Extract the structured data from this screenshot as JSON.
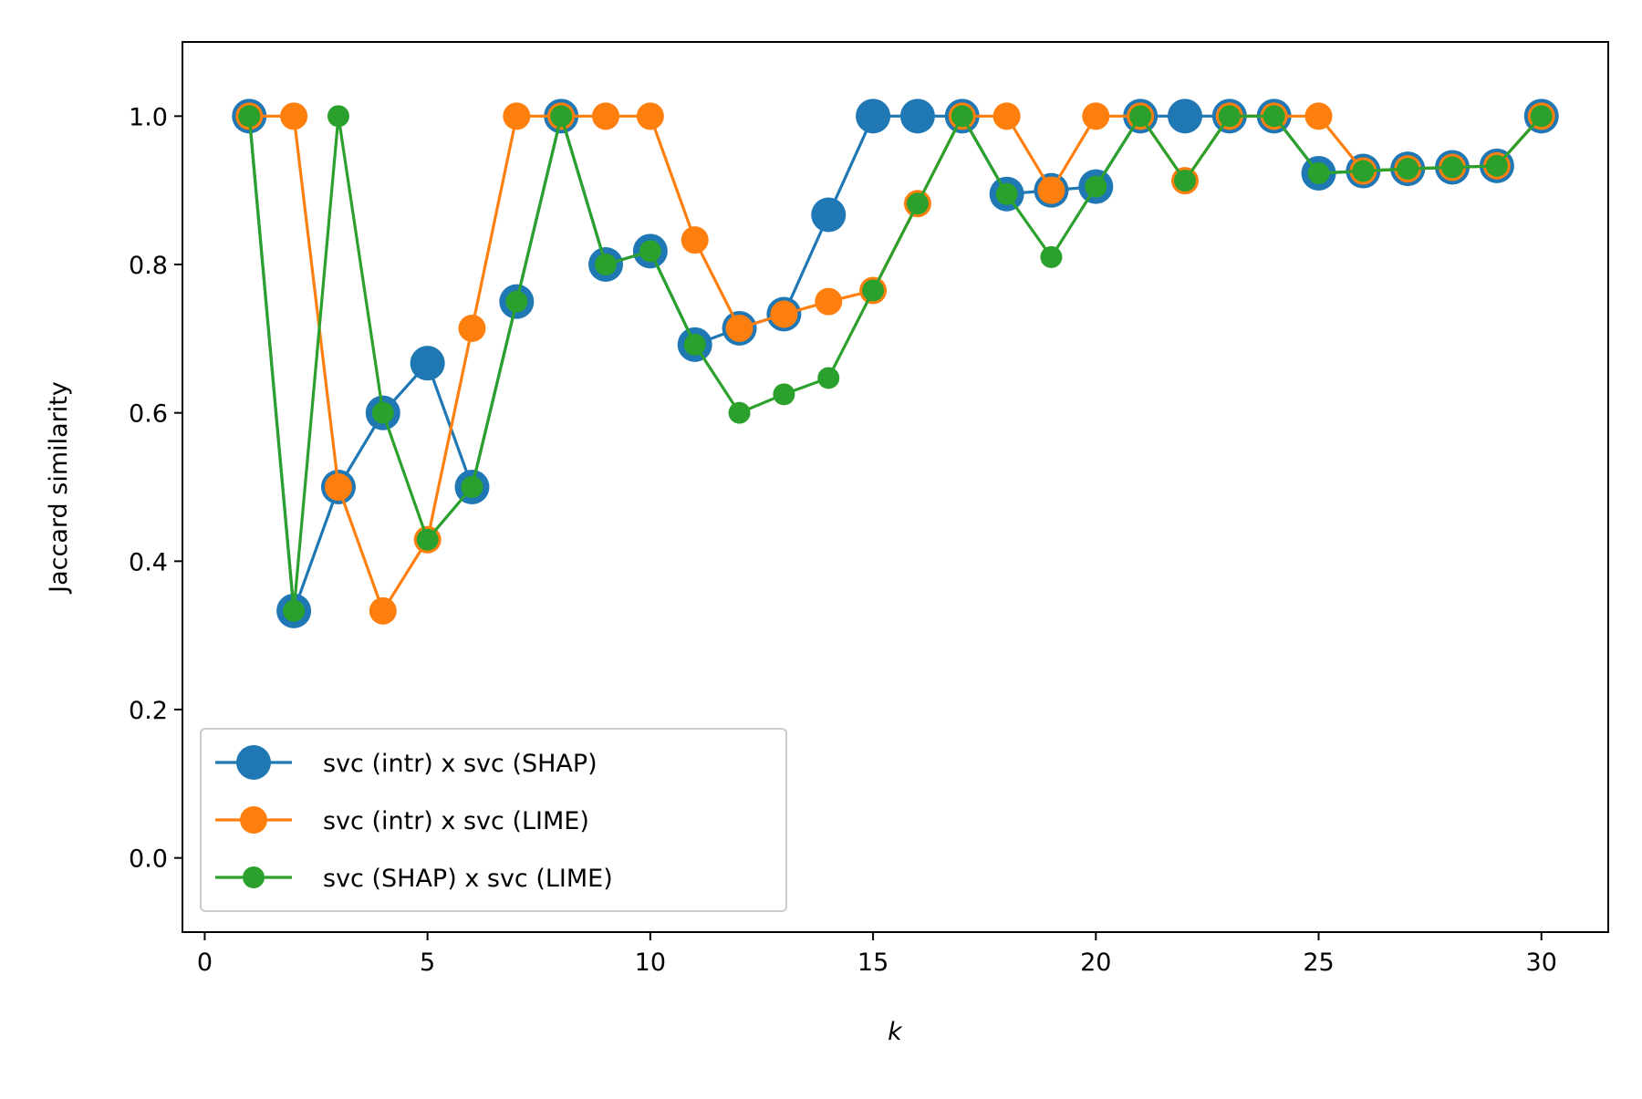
{
  "chart_data": {
    "type": "line",
    "title": "",
    "xlabel": "k",
    "ylabel": "Jaccard similarity",
    "xlim": [
      -0.5,
      31.5
    ],
    "ylim": [
      -0.1,
      1.1
    ],
    "xticks": [
      0,
      5,
      10,
      15,
      20,
      25,
      30
    ],
    "xtick_labels": [
      "0",
      "5",
      "10",
      "15",
      "20",
      "25",
      "30"
    ],
    "yticks": [
      0.0,
      0.2,
      0.4,
      0.6,
      0.8,
      1.0
    ],
    "ytick_labels": [
      "0.0",
      "0.2",
      "0.4",
      "0.6",
      "0.8",
      "1.0"
    ],
    "grid": false,
    "legend_position": "lower-left",
    "x": [
      1,
      2,
      3,
      4,
      5,
      6,
      7,
      8,
      9,
      10,
      11,
      12,
      13,
      14,
      15,
      16,
      17,
      18,
      19,
      20,
      21,
      22,
      23,
      24,
      25,
      26,
      27,
      28,
      29,
      30
    ],
    "series": [
      {
        "name": "svc (intr) x svc (SHAP)",
        "color": "#1f77b4",
        "marker_size": "large",
        "values": [
          1.0,
          0.333,
          0.5,
          0.6,
          0.667,
          0.5,
          0.75,
          1.0,
          0.8,
          0.818,
          0.692,
          0.714,
          0.733,
          0.867,
          1.0,
          1.0,
          1.0,
          0.895,
          0.9,
          0.905,
          1.0,
          1.0,
          1.0,
          1.0,
          0.923,
          0.926,
          0.929,
          0.931,
          0.933,
          1.0
        ]
      },
      {
        "name": "svc (intr) x svc (LIME)",
        "color": "#ff7f0e",
        "marker_size": "medium",
        "values": [
          1.0,
          1.0,
          0.5,
          0.333,
          0.429,
          0.714,
          1.0,
          1.0,
          1.0,
          1.0,
          0.833,
          0.714,
          0.733,
          0.75,
          0.765,
          0.882,
          1.0,
          1.0,
          0.9,
          1.0,
          1.0,
          0.913,
          1.0,
          1.0,
          1.0,
          0.926,
          0.929,
          0.931,
          0.933,
          1.0
        ]
      },
      {
        "name": "svc (SHAP) x svc (LIME)",
        "color": "#2ca02c",
        "marker_size": "small",
        "values": [
          1.0,
          0.333,
          1.0,
          0.6,
          0.429,
          0.5,
          0.75,
          1.0,
          0.8,
          0.818,
          0.692,
          0.6,
          0.625,
          0.647,
          0.765,
          0.882,
          1.0,
          0.895,
          0.81,
          0.905,
          1.0,
          0.913,
          1.0,
          1.0,
          0.923,
          0.926,
          0.929,
          0.931,
          0.933,
          1.0
        ]
      }
    ]
  }
}
